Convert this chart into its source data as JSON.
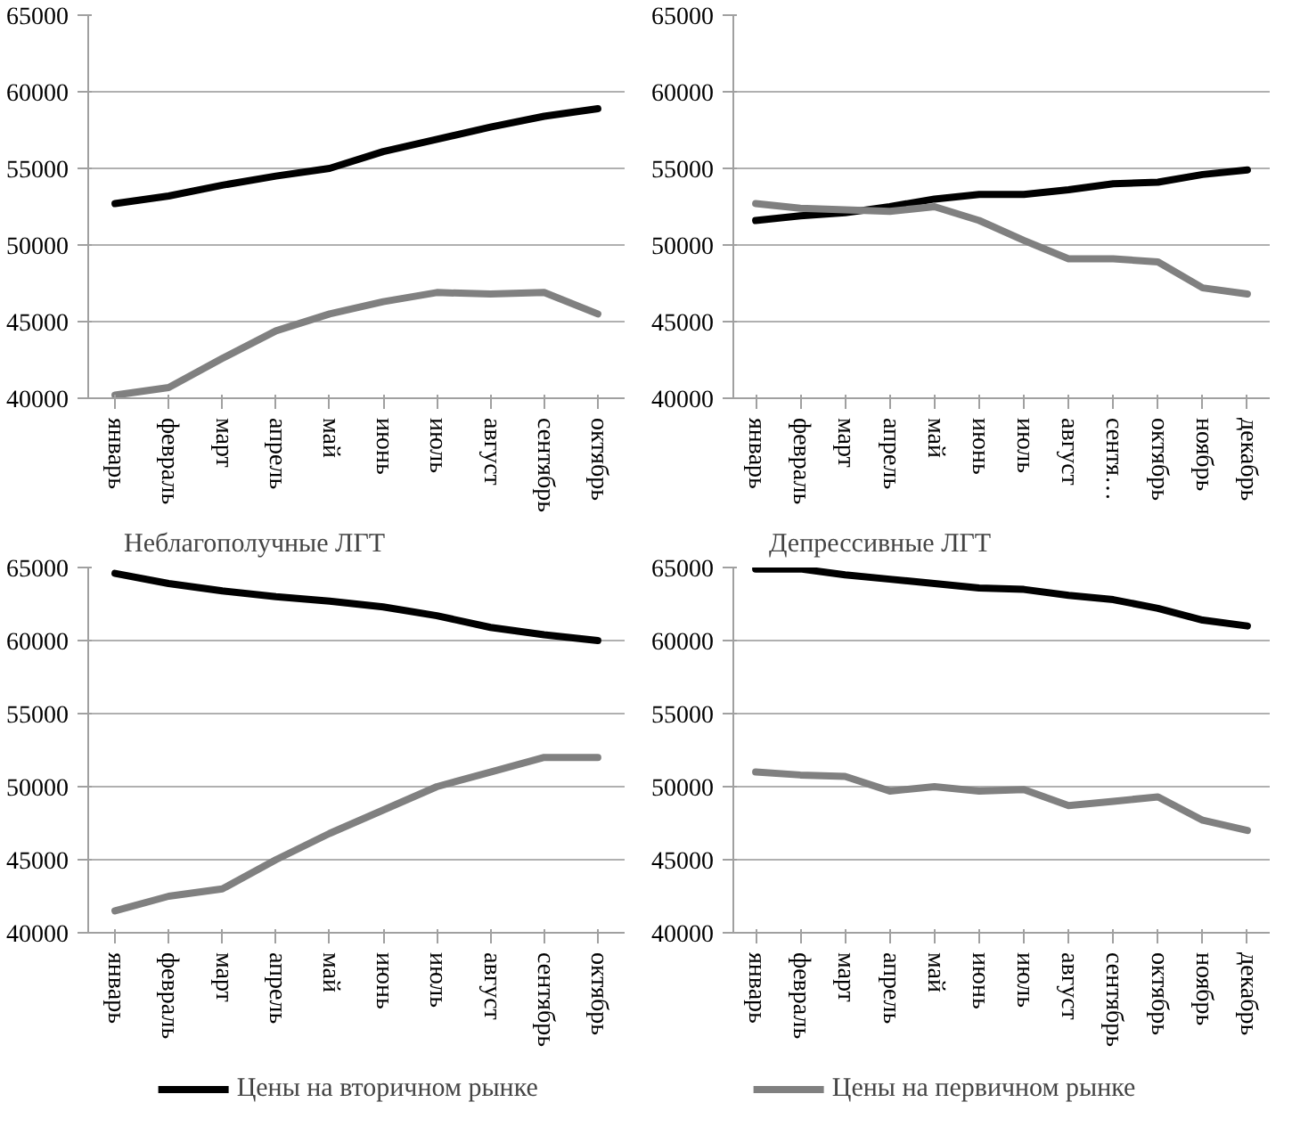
{
  "chart_data": [
    {
      "type": "line",
      "categories": [
        "январь",
        "февраль",
        "март",
        "апрель",
        "май",
        "июнь",
        "июль",
        "август",
        "сентябрь",
        "октябрь"
      ],
      "ylim": [
        40000,
        65000
      ],
      "yticks": [
        40000,
        45000,
        50000,
        55000,
        60000,
        65000
      ],
      "grid": "y",
      "series": [
        {
          "color": "#000000",
          "values": [
            52700,
            53200,
            53900,
            54500,
            55000,
            56100,
            56900,
            57700,
            58400,
            58900
          ]
        },
        {
          "color": "#808080",
          "values": [
            40200,
            40700,
            42600,
            44400,
            45500,
            46300,
            46900,
            46800,
            46900,
            45500
          ]
        }
      ]
    },
    {
      "type": "line",
      "categories": [
        "январь",
        "февраль",
        "март",
        "апрель",
        "май",
        "июнь",
        "июль",
        "август",
        "сентя…",
        "октябрь",
        "ноябрь",
        "декабрь"
      ],
      "ylim": [
        40000,
        65000
      ],
      "yticks": [
        40000,
        45000,
        50000,
        55000,
        60000,
        65000
      ],
      "grid": "y",
      "series": [
        {
          "color": "#000000",
          "values": [
            51600,
            51900,
            52100,
            52500,
            53000,
            53300,
            53300,
            53600,
            54000,
            54100,
            54600,
            54900
          ]
        },
        {
          "color": "#808080",
          "values": [
            52700,
            52400,
            52300,
            52200,
            52500,
            51600,
            50300,
            49100,
            49100,
            48900,
            47200,
            46800
          ]
        }
      ]
    },
    {
      "type": "line",
      "title": "Неблагополучные ЛГТ",
      "categories": [
        "январь",
        "февраль",
        "март",
        "апрель",
        "май",
        "июнь",
        "июль",
        "август",
        "сентябрь",
        "октябрь"
      ],
      "ylim": [
        40000,
        65000
      ],
      "yticks": [
        40000,
        45000,
        50000,
        55000,
        60000,
        65000
      ],
      "grid": "y",
      "series": [
        {
          "color": "#000000",
          "values": [
            64600,
            63900,
            63400,
            63000,
            62700,
            62300,
            61700,
            60900,
            60400,
            60000
          ]
        },
        {
          "color": "#808080",
          "values": [
            41500,
            42500,
            43000,
            45000,
            46800,
            48400,
            50000,
            51000,
            52000,
            52000
          ]
        }
      ]
    },
    {
      "type": "line",
      "title": "Депрессивные ЛГТ",
      "categories": [
        "январь",
        "февраль",
        "март",
        "апрель",
        "май",
        "июнь",
        "июль",
        "август",
        "сентябрь",
        "октябрь",
        "ноябрь",
        "декабрь"
      ],
      "ylim": [
        40000,
        65000
      ],
      "yticks": [
        40000,
        45000,
        50000,
        55000,
        60000,
        65000
      ],
      "grid": "y",
      "legend": "bottom",
      "series": [
        {
          "name": "Цены на вторичном рынке",
          "color": "#000000",
          "values": [
            64900,
            64900,
            64500,
            64200,
            63900,
            63600,
            63500,
            63100,
            62800,
            62200,
            61400,
            61000
          ]
        },
        {
          "name": "Цены на первичном рынке",
          "color": "#808080",
          "values": [
            51000,
            50800,
            50700,
            49700,
            50000,
            49700,
            49800,
            48700,
            49000,
            49300,
            47700,
            47000
          ]
        }
      ]
    }
  ]
}
